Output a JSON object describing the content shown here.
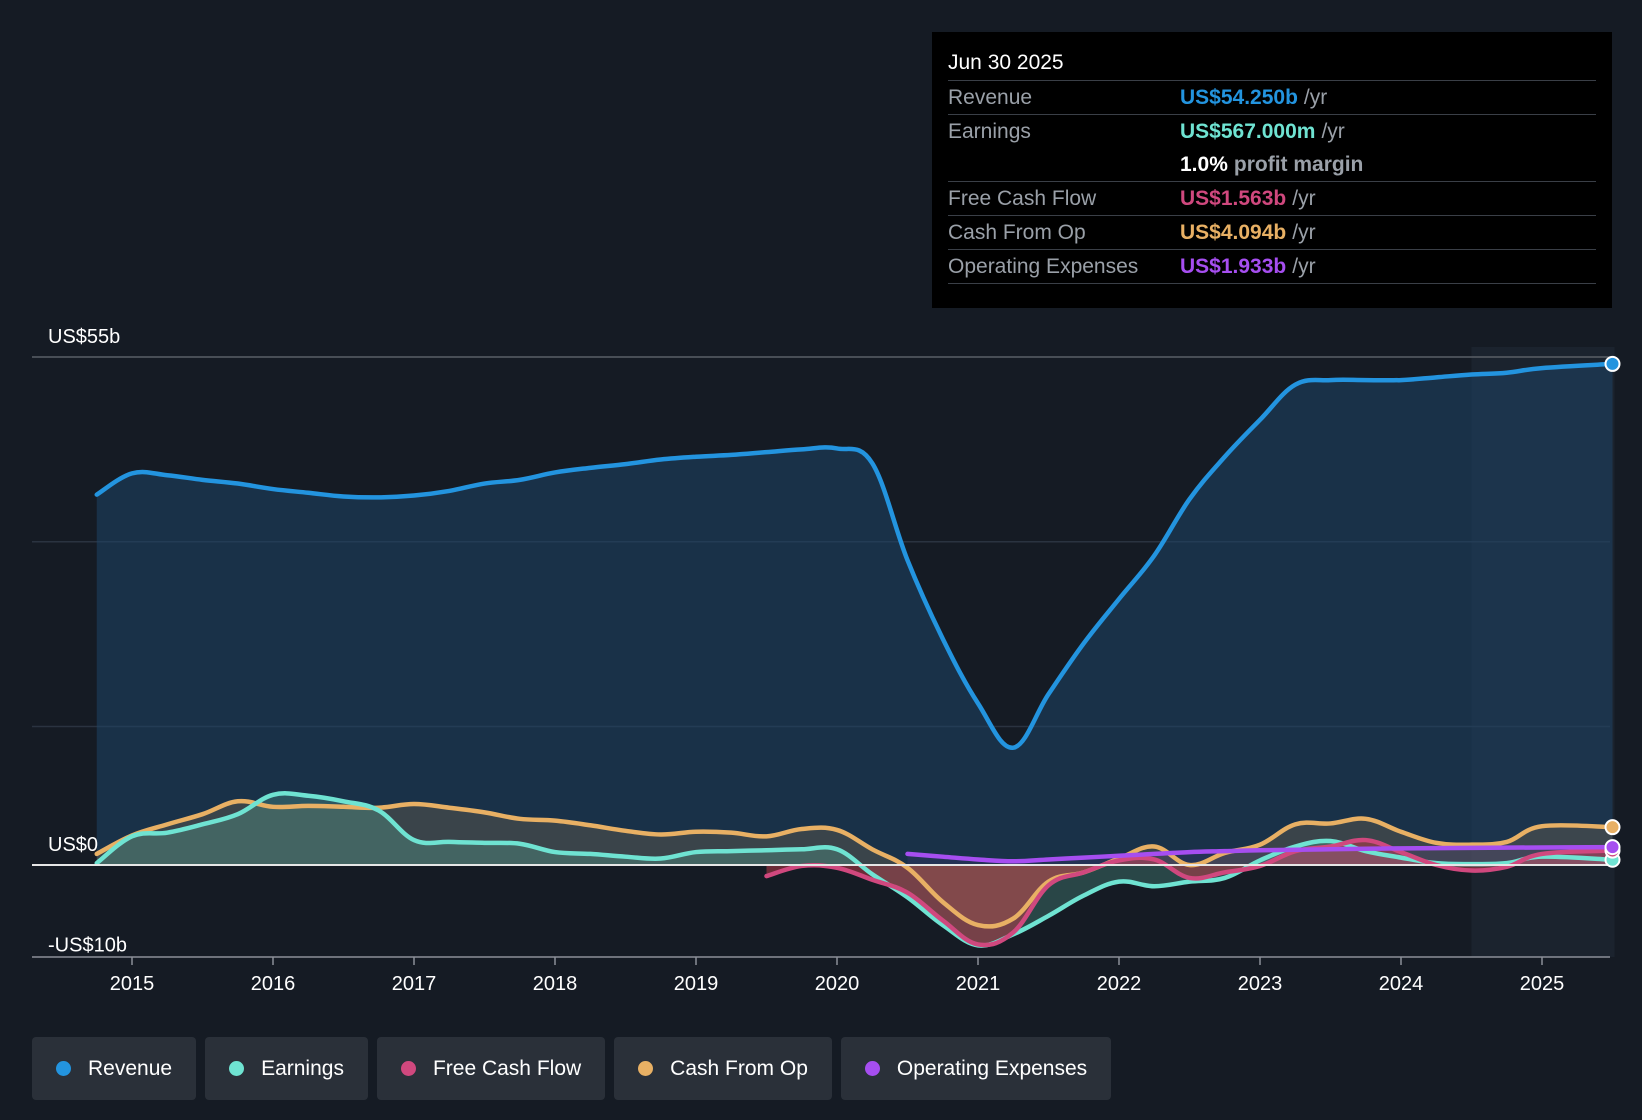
{
  "tooltip": {
    "date": "Jun 30 2025",
    "rows": {
      "revenue": {
        "label": "Revenue",
        "value": "US$54.250b",
        "unit": "/yr"
      },
      "earnings": {
        "label": "Earnings",
        "value": "US$567.000m",
        "unit": "/yr"
      },
      "margin": {
        "value": "1.0%",
        "text": "profit margin"
      },
      "fcf": {
        "label": "Free Cash Flow",
        "value": "US$1.563b",
        "unit": "/yr"
      },
      "cfo": {
        "label": "Cash From Op",
        "value": "US$4.094b",
        "unit": "/yr"
      },
      "opex": {
        "label": "Operating Expenses",
        "value": "US$1.933b",
        "unit": "/yr"
      }
    }
  },
  "legend": [
    {
      "key": "revenue",
      "label": "Revenue"
    },
    {
      "key": "earnings",
      "label": "Earnings"
    },
    {
      "key": "fcf",
      "label": "Free Cash Flow"
    },
    {
      "key": "cfo",
      "label": "Cash From Op"
    },
    {
      "key": "opex",
      "label": "Operating Expenses"
    }
  ],
  "colors": {
    "background": "#151b24",
    "revenue": "#2394df",
    "earnings": "#6fe3d2",
    "fcf": "#d0487e",
    "cfo": "#e8b064",
    "opex": "#a64ef0",
    "axis": "#8b9098"
  },
  "chart_data": {
    "type": "area",
    "y_axis": {
      "min": -10,
      "max": 55,
      "unit": "US$ b",
      "labels": [
        "US$55b",
        "US$0",
        "-US$10b"
      ],
      "label_values": [
        55,
        0,
        -10
      ]
    },
    "x_axis": {
      "min": 2014.5,
      "max": 2025.5,
      "tick_labels": [
        "2015",
        "2016",
        "2017",
        "2018",
        "2019",
        "2020",
        "2021",
        "2022",
        "2023",
        "2024",
        "2025"
      ],
      "tick_values": [
        2015,
        2016,
        2017,
        2018,
        2019,
        2020,
        2021,
        2022,
        2023,
        2024,
        2025
      ]
    },
    "gridlines": [
      35,
      15
    ],
    "forecast_region_start": 2024.5,
    "series": [
      {
        "key": "revenue",
        "name": "Revenue",
        "points": [
          [
            2014.75,
            40.1
          ],
          [
            2015.0,
            42.4
          ],
          [
            2015.25,
            42.2
          ],
          [
            2015.5,
            41.7
          ],
          [
            2015.75,
            41.3
          ],
          [
            2016.0,
            40.7
          ],
          [
            2016.25,
            40.3
          ],
          [
            2016.5,
            39.9
          ],
          [
            2016.75,
            39.8
          ],
          [
            2017.0,
            40.0
          ],
          [
            2017.25,
            40.5
          ],
          [
            2017.5,
            41.3
          ],
          [
            2017.75,
            41.7
          ],
          [
            2018.0,
            42.5
          ],
          [
            2018.25,
            43.0
          ],
          [
            2018.5,
            43.4
          ],
          [
            2018.75,
            43.9
          ],
          [
            2019.0,
            44.2
          ],
          [
            2019.25,
            44.4
          ],
          [
            2019.5,
            44.7
          ],
          [
            2019.75,
            45.0
          ],
          [
            2020.0,
            45.1
          ],
          [
            2020.25,
            43.5
          ],
          [
            2020.5,
            33.0
          ],
          [
            2020.75,
            24.5
          ],
          [
            2021.0,
            17.5
          ],
          [
            2021.25,
            12.7
          ],
          [
            2021.5,
            18.5
          ],
          [
            2021.75,
            24.0
          ],
          [
            2022.0,
            28.8
          ],
          [
            2022.25,
            33.5
          ],
          [
            2022.5,
            39.6
          ],
          [
            2022.75,
            44.2
          ],
          [
            2023.0,
            48.2
          ],
          [
            2023.25,
            52.0
          ],
          [
            2023.5,
            52.5
          ],
          [
            2023.75,
            52.5
          ],
          [
            2024.0,
            52.5
          ],
          [
            2024.25,
            52.8
          ],
          [
            2024.5,
            53.1
          ],
          [
            2024.75,
            53.3
          ],
          [
            2025.0,
            53.8
          ],
          [
            2025.5,
            54.25
          ]
        ]
      },
      {
        "key": "earnings",
        "name": "Earnings",
        "points": [
          [
            2014.75,
            0.2
          ],
          [
            2015.0,
            3.1
          ],
          [
            2015.25,
            3.5
          ],
          [
            2015.5,
            4.4
          ],
          [
            2015.75,
            5.5
          ],
          [
            2016.0,
            7.6
          ],
          [
            2016.25,
            7.5
          ],
          [
            2016.5,
            6.9
          ],
          [
            2016.75,
            5.9
          ],
          [
            2017.0,
            2.7
          ],
          [
            2017.25,
            2.5
          ],
          [
            2017.5,
            2.4
          ],
          [
            2017.75,
            2.3
          ],
          [
            2018.0,
            1.4
          ],
          [
            2018.25,
            1.2
          ],
          [
            2018.5,
            0.9
          ],
          [
            2018.75,
            0.7
          ],
          [
            2019.0,
            1.4
          ],
          [
            2019.25,
            1.5
          ],
          [
            2019.5,
            1.6
          ],
          [
            2019.75,
            1.7
          ],
          [
            2020.0,
            1.7
          ],
          [
            2020.25,
            -1.0
          ],
          [
            2020.5,
            -3.5
          ],
          [
            2020.75,
            -6.5
          ],
          [
            2021.0,
            -8.7
          ],
          [
            2021.25,
            -7.5
          ],
          [
            2021.5,
            -5.5
          ],
          [
            2021.75,
            -3.3
          ],
          [
            2022.0,
            -1.8
          ],
          [
            2022.25,
            -2.3
          ],
          [
            2022.5,
            -1.8
          ],
          [
            2022.75,
            -1.4
          ],
          [
            2023.0,
            0.5
          ],
          [
            2023.25,
            2.0
          ],
          [
            2023.5,
            2.6
          ],
          [
            2023.75,
            1.5
          ],
          [
            2024.0,
            0.8
          ],
          [
            2024.25,
            0.2
          ],
          [
            2024.5,
            0.1
          ],
          [
            2024.75,
            0.2
          ],
          [
            2025.0,
            0.9
          ],
          [
            2025.5,
            0.567
          ]
        ]
      },
      {
        "key": "fcf",
        "name": "Free Cash Flow",
        "points": [
          [
            2019.5,
            -1.2
          ],
          [
            2019.75,
            -0.1
          ],
          [
            2020.0,
            -0.3
          ],
          [
            2020.25,
            -1.6
          ],
          [
            2020.5,
            -3.0
          ],
          [
            2020.75,
            -6.0
          ],
          [
            2021.0,
            -8.6
          ],
          [
            2021.25,
            -7.3
          ],
          [
            2021.5,
            -2.2
          ],
          [
            2021.75,
            -0.8
          ],
          [
            2022.0,
            0.5
          ],
          [
            2022.25,
            0.6
          ],
          [
            2022.5,
            -1.4
          ],
          [
            2022.75,
            -0.8
          ],
          [
            2023.0,
            -0.1
          ],
          [
            2023.25,
            1.5
          ],
          [
            2023.5,
            2.0
          ],
          [
            2023.75,
            2.7
          ],
          [
            2024.0,
            1.4
          ],
          [
            2024.25,
            0.0
          ],
          [
            2024.5,
            -0.6
          ],
          [
            2024.75,
            -0.2
          ],
          [
            2025.0,
            1.2
          ],
          [
            2025.5,
            1.563
          ]
        ]
      },
      {
        "key": "cfo",
        "name": "Cash From Op",
        "points": [
          [
            2014.75,
            1.2
          ],
          [
            2015.0,
            3.2
          ],
          [
            2015.25,
            4.4
          ],
          [
            2015.5,
            5.5
          ],
          [
            2015.75,
            6.9
          ],
          [
            2016.0,
            6.3
          ],
          [
            2016.25,
            6.4
          ],
          [
            2016.5,
            6.3
          ],
          [
            2016.75,
            6.2
          ],
          [
            2017.0,
            6.6
          ],
          [
            2017.25,
            6.2
          ],
          [
            2017.5,
            5.7
          ],
          [
            2017.75,
            5.0
          ],
          [
            2018.0,
            4.8
          ],
          [
            2018.25,
            4.3
          ],
          [
            2018.5,
            3.7
          ],
          [
            2018.75,
            3.3
          ],
          [
            2019.0,
            3.6
          ],
          [
            2019.25,
            3.5
          ],
          [
            2019.5,
            3.1
          ],
          [
            2019.75,
            3.9
          ],
          [
            2020.0,
            3.8
          ],
          [
            2020.25,
            1.7
          ],
          [
            2020.5,
            -0.3
          ],
          [
            2020.75,
            -4.0
          ],
          [
            2021.0,
            -6.5
          ],
          [
            2021.25,
            -5.8
          ],
          [
            2021.5,
            -1.8
          ],
          [
            2021.75,
            -0.8
          ],
          [
            2022.0,
            0.7
          ],
          [
            2022.25,
            2.0
          ],
          [
            2022.5,
            0.0
          ],
          [
            2022.75,
            1.3
          ],
          [
            2023.0,
            2.2
          ],
          [
            2023.25,
            4.4
          ],
          [
            2023.5,
            4.5
          ],
          [
            2023.75,
            5.0
          ],
          [
            2024.0,
            3.6
          ],
          [
            2024.25,
            2.4
          ],
          [
            2024.5,
            2.2
          ],
          [
            2024.75,
            2.5
          ],
          [
            2025.0,
            4.2
          ],
          [
            2025.5,
            4.094
          ]
        ]
      },
      {
        "key": "opex",
        "name": "Operating Expenses",
        "points": [
          [
            2020.5,
            1.2
          ],
          [
            2020.75,
            0.9
          ],
          [
            2021.0,
            0.6
          ],
          [
            2021.25,
            0.4
          ],
          [
            2021.5,
            0.6
          ],
          [
            2021.75,
            0.8
          ],
          [
            2022.0,
            1.0
          ],
          [
            2022.25,
            1.2
          ],
          [
            2022.5,
            1.4
          ],
          [
            2022.75,
            1.5
          ],
          [
            2023.0,
            1.6
          ],
          [
            2023.5,
            1.7
          ],
          [
            2024.0,
            1.8
          ],
          [
            2024.5,
            1.85
          ],
          [
            2025.0,
            1.9
          ],
          [
            2025.5,
            1.933
          ]
        ]
      }
    ]
  }
}
